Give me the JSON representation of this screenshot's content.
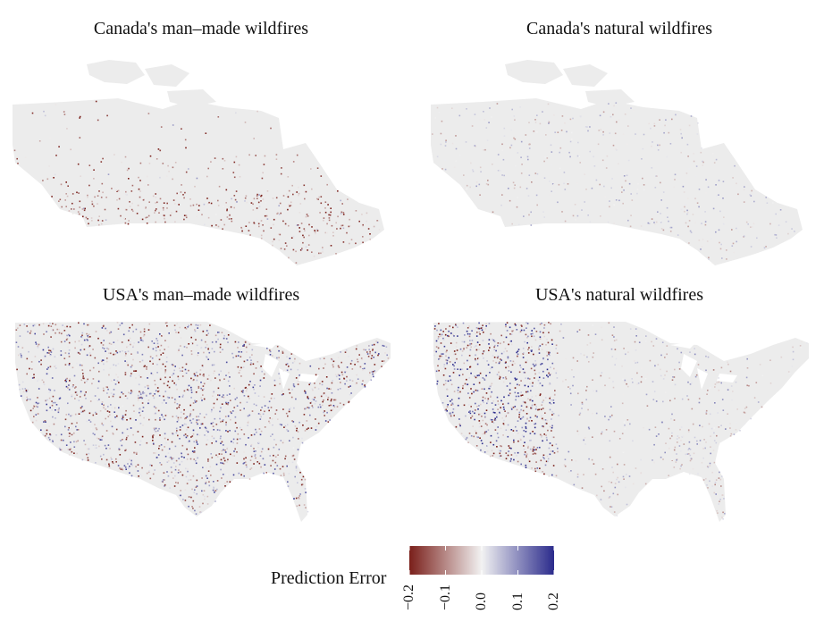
{
  "panels": [
    {
      "title": "Canada's man–made wildfires",
      "region": "canada",
      "error_style": "red-dominant"
    },
    {
      "title": "Canada's natural wildfires",
      "region": "canada",
      "error_style": "mixed-faint"
    },
    {
      "title": "USA's man–made wildfires",
      "region": "usa",
      "error_style": "dense-mixed"
    },
    {
      "title": "USA's natural wildfires",
      "region": "usa",
      "error_style": "west-heavy"
    }
  ],
  "legend": {
    "title": "Prediction Error",
    "ticks": [
      "−0.2",
      "−0.1",
      "0.0",
      "0.1",
      "0.2"
    ],
    "tick_values": [
      -0.2,
      -0.1,
      0.0,
      0.1,
      0.2
    ],
    "range": [
      -0.2,
      0.2
    ],
    "color_low": "#7a1f1a",
    "color_mid": "#f2f2f2",
    "color_high": "#2b2b8c"
  },
  "colors": {
    "land": "#ececec",
    "background": "#ffffff"
  }
}
